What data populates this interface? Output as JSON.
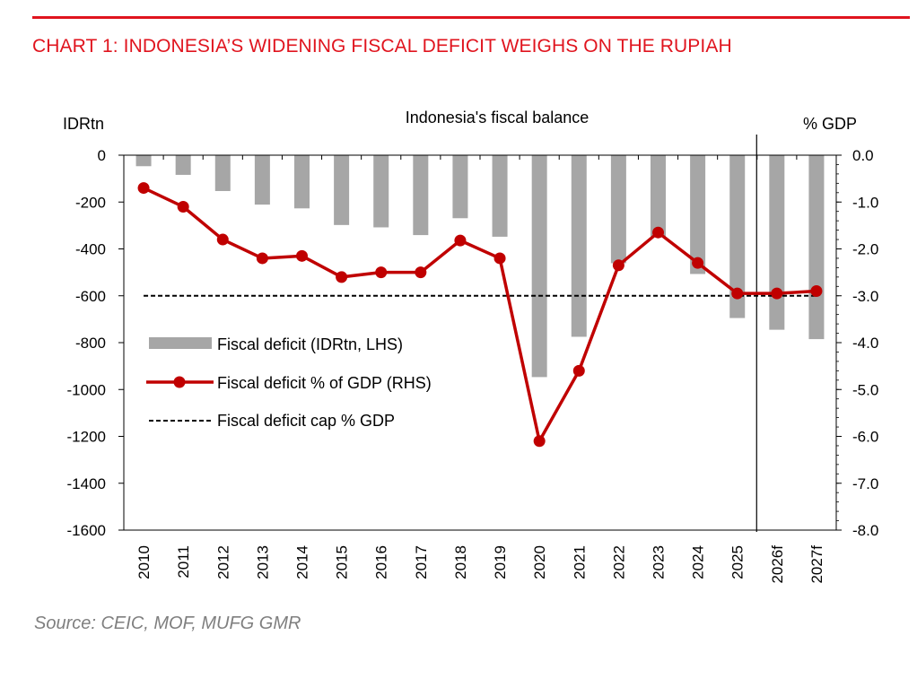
{
  "header": {
    "headline": "CHART 1: INDONESIA’S WIDENING FISCAL DEFICIT WEIGHS ON THE RUPIAH"
  },
  "chart_data": {
    "type": "bar",
    "title": "Indonesia's fiscal balance",
    "left_axis_label": "IDRtn",
    "right_axis_label": "% GDP",
    "categories": [
      "2010",
      "2011",
      "2012",
      "2013",
      "2014",
      "2015",
      "2016",
      "2017",
      "2018",
      "2019",
      "2020",
      "2021",
      "2022",
      "2023",
      "2024",
      "2025",
      "2026f",
      "2027f"
    ],
    "left_ticks": [
      "0",
      "-200",
      "-400",
      "-600",
      "-800",
      "-1000",
      "-1200",
      "-1400",
      "-1600"
    ],
    "right_ticks": [
      "0.0",
      "-1.0",
      "-2.0",
      "-3.0",
      "-4.0",
      "-5.0",
      "-6.0",
      "-7.0",
      "-8.0"
    ],
    "ylim_left": [
      -1600,
      0
    ],
    "ylim_right": [
      -8,
      0
    ],
    "series": [
      {
        "name": "Fiscal deficit (IDRtn, LHS)",
        "type": "bar",
        "axis": "left",
        "color": "#a6a6a6",
        "values": [
          -47,
          -84,
          -153,
          -211,
          -227,
          -298,
          -308,
          -341,
          -269,
          -348,
          -947,
          -775,
          -461,
          -347,
          -507,
          -695,
          -745,
          -785
        ]
      },
      {
        "name": "Fiscal deficit % of GDP (RHS)",
        "type": "line",
        "axis": "right",
        "color": "#c00000",
        "values": [
          -0.7,
          -1.1,
          -1.8,
          -2.2,
          -2.15,
          -2.6,
          -2.5,
          -2.5,
          -1.82,
          -2.2,
          -6.1,
          -4.6,
          -2.35,
          -1.65,
          -2.3,
          -2.95,
          -2.95,
          -2.9
        ]
      },
      {
        "name": "Fiscal deficit cap % GDP",
        "type": "line",
        "axis": "right",
        "style": "dashed",
        "color": "#000000",
        "values": [
          -3,
          -3,
          -3,
          -3,
          -3,
          -3,
          -3,
          -3,
          -3,
          -3,
          -3,
          -3,
          -3,
          -3,
          -3,
          -3,
          -3,
          -3
        ]
      }
    ],
    "forecast_divider_after": "2025",
    "legend_placement": "center-left",
    "grid": false
  },
  "footer": {
    "source": "Source: CEIC, MOF, MUFG GMR"
  }
}
